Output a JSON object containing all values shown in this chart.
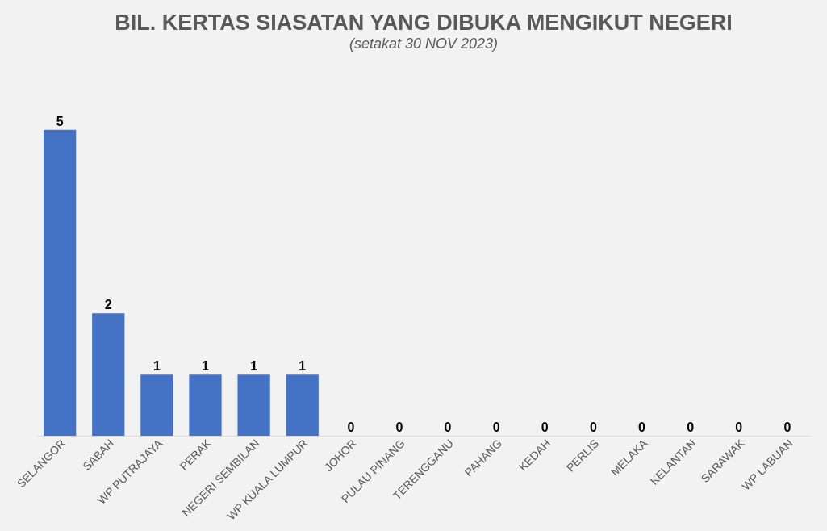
{
  "chart_data": {
    "type": "bar",
    "title": "BIL. KERTAS SIASATAN YANG DIBUKA MENGIKUT NEGERI",
    "subtitle": "(setakat 30 NOV 2023)",
    "categories": [
      "SELANGOR",
      "SABAH",
      "WP PUTRAJAYA",
      "PERAK",
      "NEGERI SEMBILAN",
      "WP KUALA LUMPUR",
      "JOHOR",
      "PULAU PINANG",
      "TERENGGANU",
      "PAHANG",
      "KEDAH",
      "PERLIS",
      "MELAKA",
      "KELANTAN",
      "SARAWAK",
      "WP LABUAN"
    ],
    "values": [
      5,
      2,
      1,
      1,
      1,
      1,
      0,
      0,
      0,
      0,
      0,
      0,
      0,
      0,
      0,
      0
    ],
    "color": "#4472c4",
    "data_labels": true,
    "grid": false,
    "tick_labels": "x"
  }
}
